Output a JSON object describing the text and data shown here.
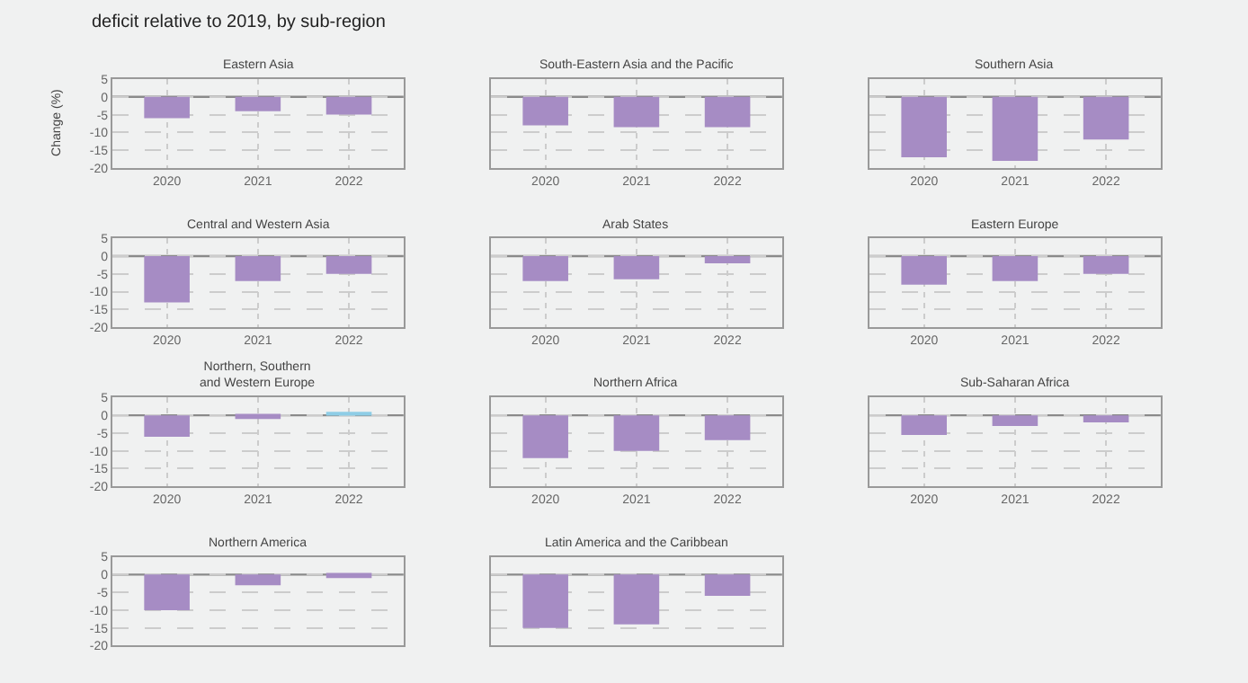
{
  "chart_data": [
    {
      "type": "bar",
      "title": "Eastern Asia",
      "annotations": [
        "deficit relative to 2019, by sub-region"
      ],
      "ylabel": "Change (%)",
      "categories": [
        "2020",
        "2021",
        "2022"
      ],
      "values": [
        -6,
        -4,
        -5
      ],
      "colors": [
        "#a68cc4",
        "#a68cc4",
        "#a68cc4"
      ],
      "ylim": [
        -20,
        5
      ],
      "yticks": [
        5,
        0,
        -5,
        -10,
        -15,
        -20
      ],
      "grid": true,
      "ref_lines": [
        {
          "axis": "y",
          "value": 0,
          "color": "#8a8a8a"
        }
      ]
    },
    {
      "type": "bar",
      "title": "South-Eastern Asia and the Pacific",
      "categories": [
        "2020",
        "2021",
        "2022"
      ],
      "values": [
        -8,
        -8.5,
        -8.5
      ],
      "colors": [
        "#a68cc4",
        "#a68cc4",
        "#a68cc4"
      ],
      "ylim": [
        -20,
        5
      ],
      "yticks": [
        5,
        0,
        -5,
        -10,
        -15,
        -20
      ],
      "grid": true,
      "tick_labels": "x",
      "ref_lines": [
        {
          "axis": "y",
          "value": 0,
          "color": "#8a8a8a"
        }
      ]
    },
    {
      "type": "bar",
      "title": "Southern Asia",
      "categories": [
        "2020",
        "2021",
        "2022"
      ],
      "values": [
        -17,
        -18,
        -12
      ],
      "colors": [
        "#a68cc4",
        "#a68cc4",
        "#a68cc4"
      ],
      "ylim": [
        -20,
        5
      ],
      "yticks": [
        5,
        0,
        -5,
        -10,
        -15,
        -20
      ],
      "grid": true,
      "tick_labels": "x",
      "ref_lines": [
        {
          "axis": "y",
          "value": 0,
          "color": "#8a8a8a"
        }
      ]
    },
    {
      "type": "bar",
      "title": "Central and Western Asia",
      "categories": [
        "2020",
        "2021",
        "2022"
      ],
      "values": [
        -13,
        -7,
        -5
      ],
      "colors": [
        "#a68cc4",
        "#a68cc4",
        "#a68cc4"
      ],
      "ylim": [
        -20,
        5
      ],
      "yticks": [
        5,
        0,
        -5,
        -10,
        -15,
        -20
      ],
      "grid": true,
      "ref_lines": [
        {
          "axis": "y",
          "value": 0,
          "color": "#8a8a8a"
        }
      ]
    },
    {
      "type": "bar",
      "title": "Arab States",
      "categories": [
        "2020",
        "2021",
        "2022"
      ],
      "values": [
        -7,
        -6.5,
        -2
      ],
      "colors": [
        "#a68cc4",
        "#a68cc4",
        "#a68cc4"
      ],
      "ylim": [
        -20,
        5
      ],
      "yticks": [
        5,
        0,
        -5,
        -10,
        -15,
        -20
      ],
      "grid": true,
      "tick_labels": "x",
      "ref_lines": [
        {
          "axis": "y",
          "value": 0,
          "color": "#8a8a8a"
        }
      ]
    },
    {
      "type": "bar",
      "title": "Eastern Europe",
      "categories": [
        "2020",
        "2021",
        "2022"
      ],
      "values": [
        -8,
        -7,
        -5
      ],
      "colors": [
        "#a68cc4",
        "#a68cc4",
        "#a68cc4"
      ],
      "ylim": [
        -20,
        5
      ],
      "yticks": [
        5,
        0,
        -5,
        -10,
        -15,
        -20
      ],
      "grid": true,
      "tick_labels": "x",
      "ref_lines": [
        {
          "axis": "y",
          "value": 0,
          "color": "#8a8a8a"
        }
      ]
    },
    {
      "type": "bar",
      "title": "Northern, Southern\nand Western Europe",
      "categories": [
        "2020",
        "2021",
        "2022"
      ],
      "values": [
        -6,
        -1,
        1
      ],
      "colors": [
        "#a68cc4",
        "#a68cc4",
        "#8ecde6"
      ],
      "ylim": [
        -20,
        5
      ],
      "yticks": [
        5,
        0,
        -5,
        -10,
        -15,
        -20
      ],
      "grid": true,
      "ref_lines": [
        {
          "axis": "y",
          "value": 0,
          "color": "#8a8a8a"
        }
      ]
    },
    {
      "type": "bar",
      "title": "Northern Africa",
      "categories": [
        "2020",
        "2021",
        "2022"
      ],
      "values": [
        -12,
        -10,
        -7
      ],
      "colors": [
        "#a68cc4",
        "#a68cc4",
        "#a68cc4"
      ],
      "ylim": [
        -20,
        5
      ],
      "yticks": [
        5,
        0,
        -5,
        -10,
        -15,
        -20
      ],
      "grid": true,
      "tick_labels": "x",
      "ref_lines": [
        {
          "axis": "y",
          "value": 0,
          "color": "#8a8a8a"
        }
      ]
    },
    {
      "type": "bar",
      "title": "Sub-Saharan Africa",
      "categories": [
        "2020",
        "2021",
        "2022"
      ],
      "values": [
        -5.5,
        -3,
        -2
      ],
      "colors": [
        "#a68cc4",
        "#a68cc4",
        "#a68cc4"
      ],
      "ylim": [
        -20,
        5
      ],
      "yticks": [
        5,
        0,
        -5,
        -10,
        -15,
        -20
      ],
      "grid": true,
      "tick_labels": "x",
      "ref_lines": [
        {
          "axis": "y",
          "value": 0,
          "color": "#8a8a8a"
        }
      ]
    },
    {
      "type": "bar",
      "title": "Northern America",
      "categories": [
        null,
        null,
        null
      ],
      "values": [
        -10,
        -3,
        -1
      ],
      "colors": [
        "#a68cc4",
        "#a68cc4",
        "#a68cc4"
      ],
      "ylim": [
        -20,
        5
      ],
      "yticks": [
        5,
        0,
        -5,
        -10,
        -15,
        -20
      ],
      "grid": true,
      "tick_labels": "y",
      "ref_lines": [
        {
          "axis": "y",
          "value": 0,
          "color": "#8a8a8a"
        }
      ]
    },
    {
      "type": "bar",
      "title": "Latin America and the Caribbean",
      "categories": [
        null,
        null,
        null
      ],
      "values": [
        -15,
        -14,
        -6
      ],
      "colors": [
        "#a68cc4",
        "#a68cc4",
        "#a68cc4"
      ],
      "ylim": [
        -20,
        5
      ],
      "yticks": [
        5,
        0,
        -5,
        -10,
        -15,
        -20
      ],
      "grid": true,
      "tick_labels": false,
      "ref_lines": [
        {
          "axis": "y",
          "value": 0,
          "color": "#8a8a8a"
        }
      ]
    }
  ]
}
